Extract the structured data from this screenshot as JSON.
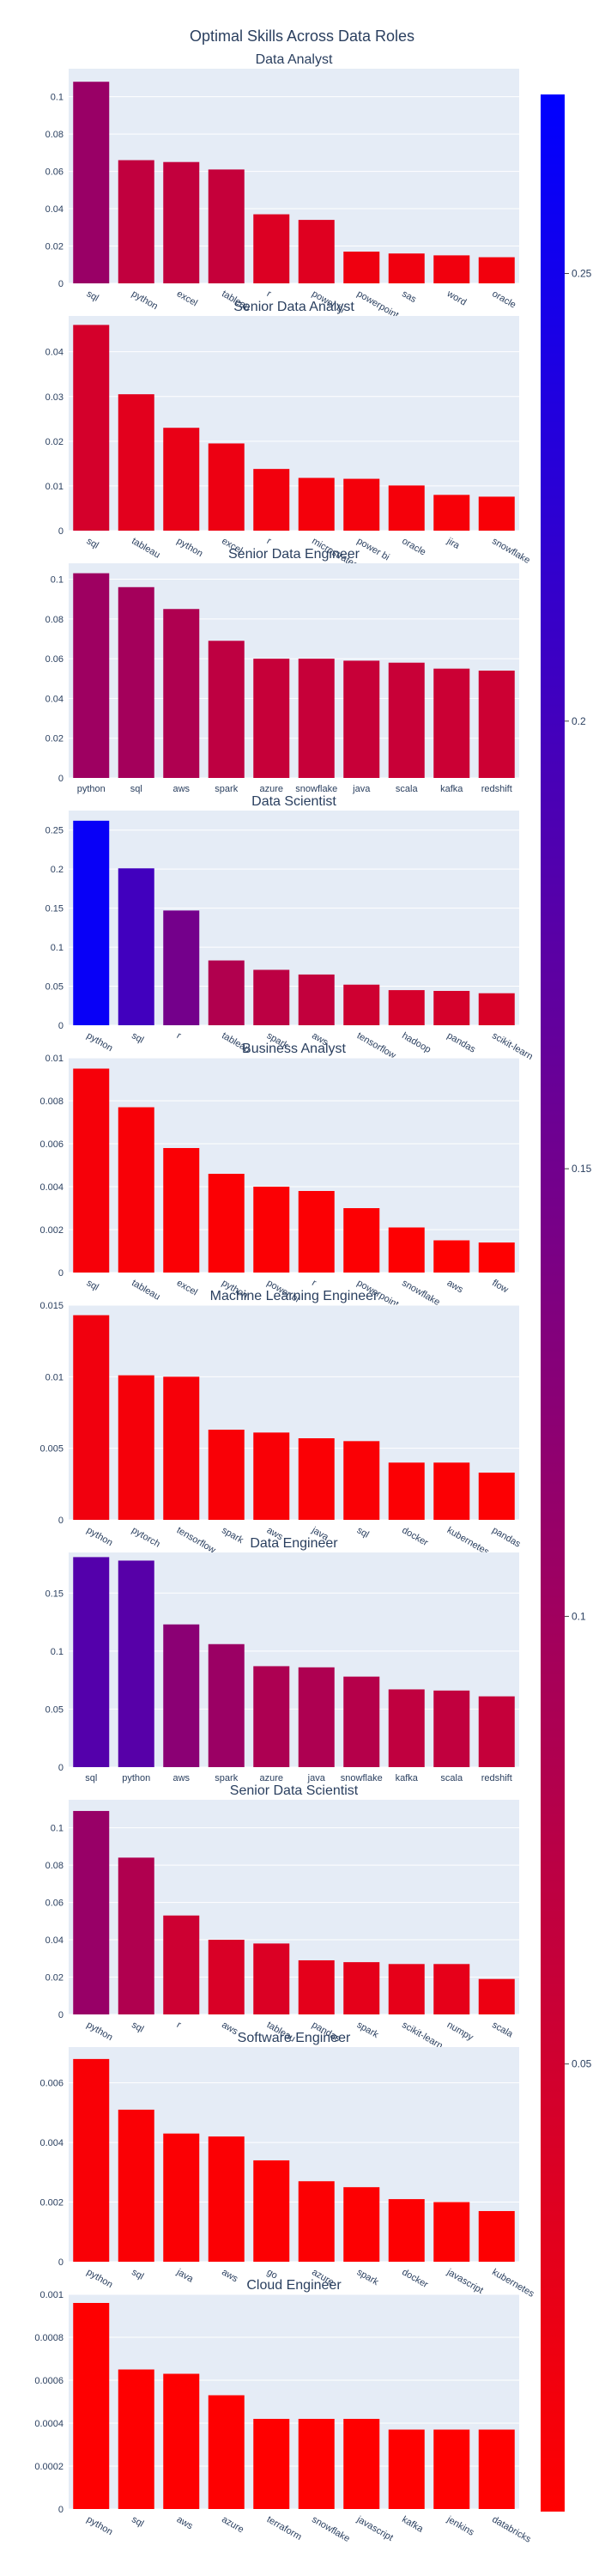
{
  "chart_data": {
    "type": "bar",
    "title": "Optimal Skills Across Data Roles",
    "colorscale": [
      "#ff0000",
      "#0000ff"
    ],
    "color_range": [
      0,
      0.27
    ],
    "colorbar_ticks": [
      0.05,
      0.1,
      0.15,
      0.2,
      0.25
    ],
    "grid": true,
    "subplots": [
      {
        "title": "Data Analyst",
        "categories": [
          "sql",
          "python",
          "excel",
          "tableau",
          "r",
          "power bi",
          "powerpoint",
          "sas",
          "word",
          "oracle"
        ],
        "values": [
          0.108,
          0.066,
          0.065,
          0.061,
          0.037,
          0.034,
          0.017,
          0.016,
          0.015,
          0.014
        ],
        "ylim": [
          0,
          0.115
        ],
        "yticks": [
          0,
          0.02,
          0.04,
          0.06,
          0.08,
          0.1
        ],
        "ytick_labels": [
          "0",
          "0.02",
          "0.04",
          "0.06",
          "0.08",
          "0.1"
        ],
        "rotate_labels": true
      },
      {
        "title": "Senior Data Analyst",
        "categories": [
          "sql",
          "tableau",
          "python",
          "excel",
          "r",
          "microstrategy",
          "power bi",
          "oracle",
          "jira",
          "snowflake"
        ],
        "values": [
          0.046,
          0.0305,
          0.023,
          0.0195,
          0.0138,
          0.0118,
          0.0116,
          0.0101,
          0.008,
          0.0076
        ],
        "ylim": [
          0,
          0.048
        ],
        "yticks": [
          0,
          0.01,
          0.02,
          0.03,
          0.04
        ],
        "ytick_labels": [
          "0",
          "0.01",
          "0.02",
          "0.03",
          "0.04"
        ],
        "rotate_labels": true
      },
      {
        "title": "Senior Data Engineer",
        "categories": [
          "python",
          "sql",
          "aws",
          "spark",
          "azure",
          "snowflake",
          "java",
          "scala",
          "kafka",
          "redshift"
        ],
        "values": [
          0.103,
          0.096,
          0.085,
          0.069,
          0.06,
          0.06,
          0.059,
          0.058,
          0.055,
          0.054
        ],
        "ylim": [
          0,
          0.108
        ],
        "yticks": [
          0,
          0.02,
          0.04,
          0.06,
          0.08,
          0.1
        ],
        "ytick_labels": [
          "0",
          "0.02",
          "0.04",
          "0.06",
          "0.08",
          "0.1"
        ],
        "rotate_labels": false
      },
      {
        "title": "Data Scientist",
        "categories": [
          "python",
          "sql",
          "r",
          "tableau",
          "spark",
          "aws",
          "tensorflow",
          "hadoop",
          "pandas",
          "scikit-learn"
        ],
        "values": [
          0.262,
          0.201,
          0.147,
          0.083,
          0.071,
          0.065,
          0.052,
          0.045,
          0.044,
          0.041
        ],
        "ylim": [
          0,
          0.275
        ],
        "yticks": [
          0,
          0.05,
          0.1,
          0.15,
          0.2,
          0.25
        ],
        "ytick_labels": [
          "0",
          "0.05",
          "0.1",
          "0.15",
          "0.2",
          "0.25"
        ],
        "rotate_labels": true
      },
      {
        "title": "Business Analyst",
        "categories": [
          "sql",
          "tableau",
          "excel",
          "python",
          "power bi",
          "r",
          "powerpoint",
          "snowflake",
          "aws",
          "flow"
        ],
        "values": [
          0.0095,
          0.0077,
          0.0058,
          0.0046,
          0.004,
          0.0038,
          0.003,
          0.0021,
          0.0015,
          0.0014
        ],
        "ylim": [
          0,
          0.01
        ],
        "yticks": [
          0,
          0.002,
          0.004,
          0.006,
          0.008,
          0.01
        ],
        "ytick_labels": [
          "0",
          "0.002",
          "0.004",
          "0.006",
          "0.008",
          "0.01"
        ],
        "rotate_labels": true
      },
      {
        "title": "Machine Learning Engineer",
        "categories": [
          "python",
          "pytorch",
          "tensorflow",
          "spark",
          "aws",
          "java",
          "sql",
          "docker",
          "kubernetes",
          "pandas"
        ],
        "values": [
          0.0143,
          0.0101,
          0.01,
          0.0063,
          0.0061,
          0.0057,
          0.0055,
          0.004,
          0.004,
          0.0033
        ],
        "ylim": [
          0,
          0.015
        ],
        "yticks": [
          0,
          0.005,
          0.01,
          0.015
        ],
        "ytick_labels": [
          "0",
          "0.005",
          "0.01",
          "0.015"
        ],
        "rotate_labels": true
      },
      {
        "title": "Data Engineer",
        "categories": [
          "sql",
          "python",
          "aws",
          "spark",
          "azure",
          "java",
          "snowflake",
          "kafka",
          "scala",
          "redshift"
        ],
        "values": [
          0.181,
          0.178,
          0.123,
          0.106,
          0.087,
          0.086,
          0.078,
          0.067,
          0.066,
          0.061
        ],
        "ylim": [
          0,
          0.185
        ],
        "yticks": [
          0,
          0.05,
          0.1,
          0.15
        ],
        "ytick_labels": [
          "0",
          "0.05",
          "0.1",
          "0.15"
        ],
        "rotate_labels": false
      },
      {
        "title": "Senior Data Scientist",
        "categories": [
          "python",
          "sql",
          "r",
          "aws",
          "tableau",
          "pandas",
          "spark",
          "scikit-learn",
          "numpy",
          "scala"
        ],
        "values": [
          0.109,
          0.084,
          0.053,
          0.04,
          0.038,
          0.029,
          0.028,
          0.027,
          0.027,
          0.019
        ],
        "ylim": [
          0,
          0.115
        ],
        "yticks": [
          0,
          0.02,
          0.04,
          0.06,
          0.08,
          0.1
        ],
        "ytick_labels": [
          "0",
          "0.02",
          "0.04",
          "0.06",
          "0.08",
          "0.1"
        ],
        "rotate_labels": true
      },
      {
        "title": "Software Engineer",
        "categories": [
          "python",
          "sql",
          "java",
          "aws",
          "go",
          "azure",
          "spark",
          "docker",
          "javascript",
          "kubernetes"
        ],
        "values": [
          0.0068,
          0.0051,
          0.0043,
          0.0042,
          0.0034,
          0.0027,
          0.0025,
          0.0021,
          0.002,
          0.0017
        ],
        "ylim": [
          0,
          0.0072
        ],
        "yticks": [
          0,
          0.002,
          0.004,
          0.006
        ],
        "ytick_labels": [
          "0",
          "0.002",
          "0.004",
          "0.006"
        ],
        "rotate_labels": true
      },
      {
        "title": "Cloud Engineer",
        "categories": [
          "python",
          "sql",
          "aws",
          "azure",
          "terraform",
          "snowflake",
          "javascript",
          "kafka",
          "jenkins",
          "databricks"
        ],
        "values": [
          0.00096,
          0.00065,
          0.00063,
          0.00053,
          0.00042,
          0.00042,
          0.00042,
          0.00037,
          0.00037,
          0.00037
        ],
        "ylim": [
          0,
          0.001
        ],
        "yticks": [
          0,
          0.0002,
          0.0004,
          0.0006,
          0.0008,
          0.001
        ],
        "ytick_labels": [
          "0",
          "0.0002",
          "0.0004",
          "0.0006",
          "0.0008",
          "0.001"
        ],
        "rotate_labels": true
      }
    ]
  }
}
